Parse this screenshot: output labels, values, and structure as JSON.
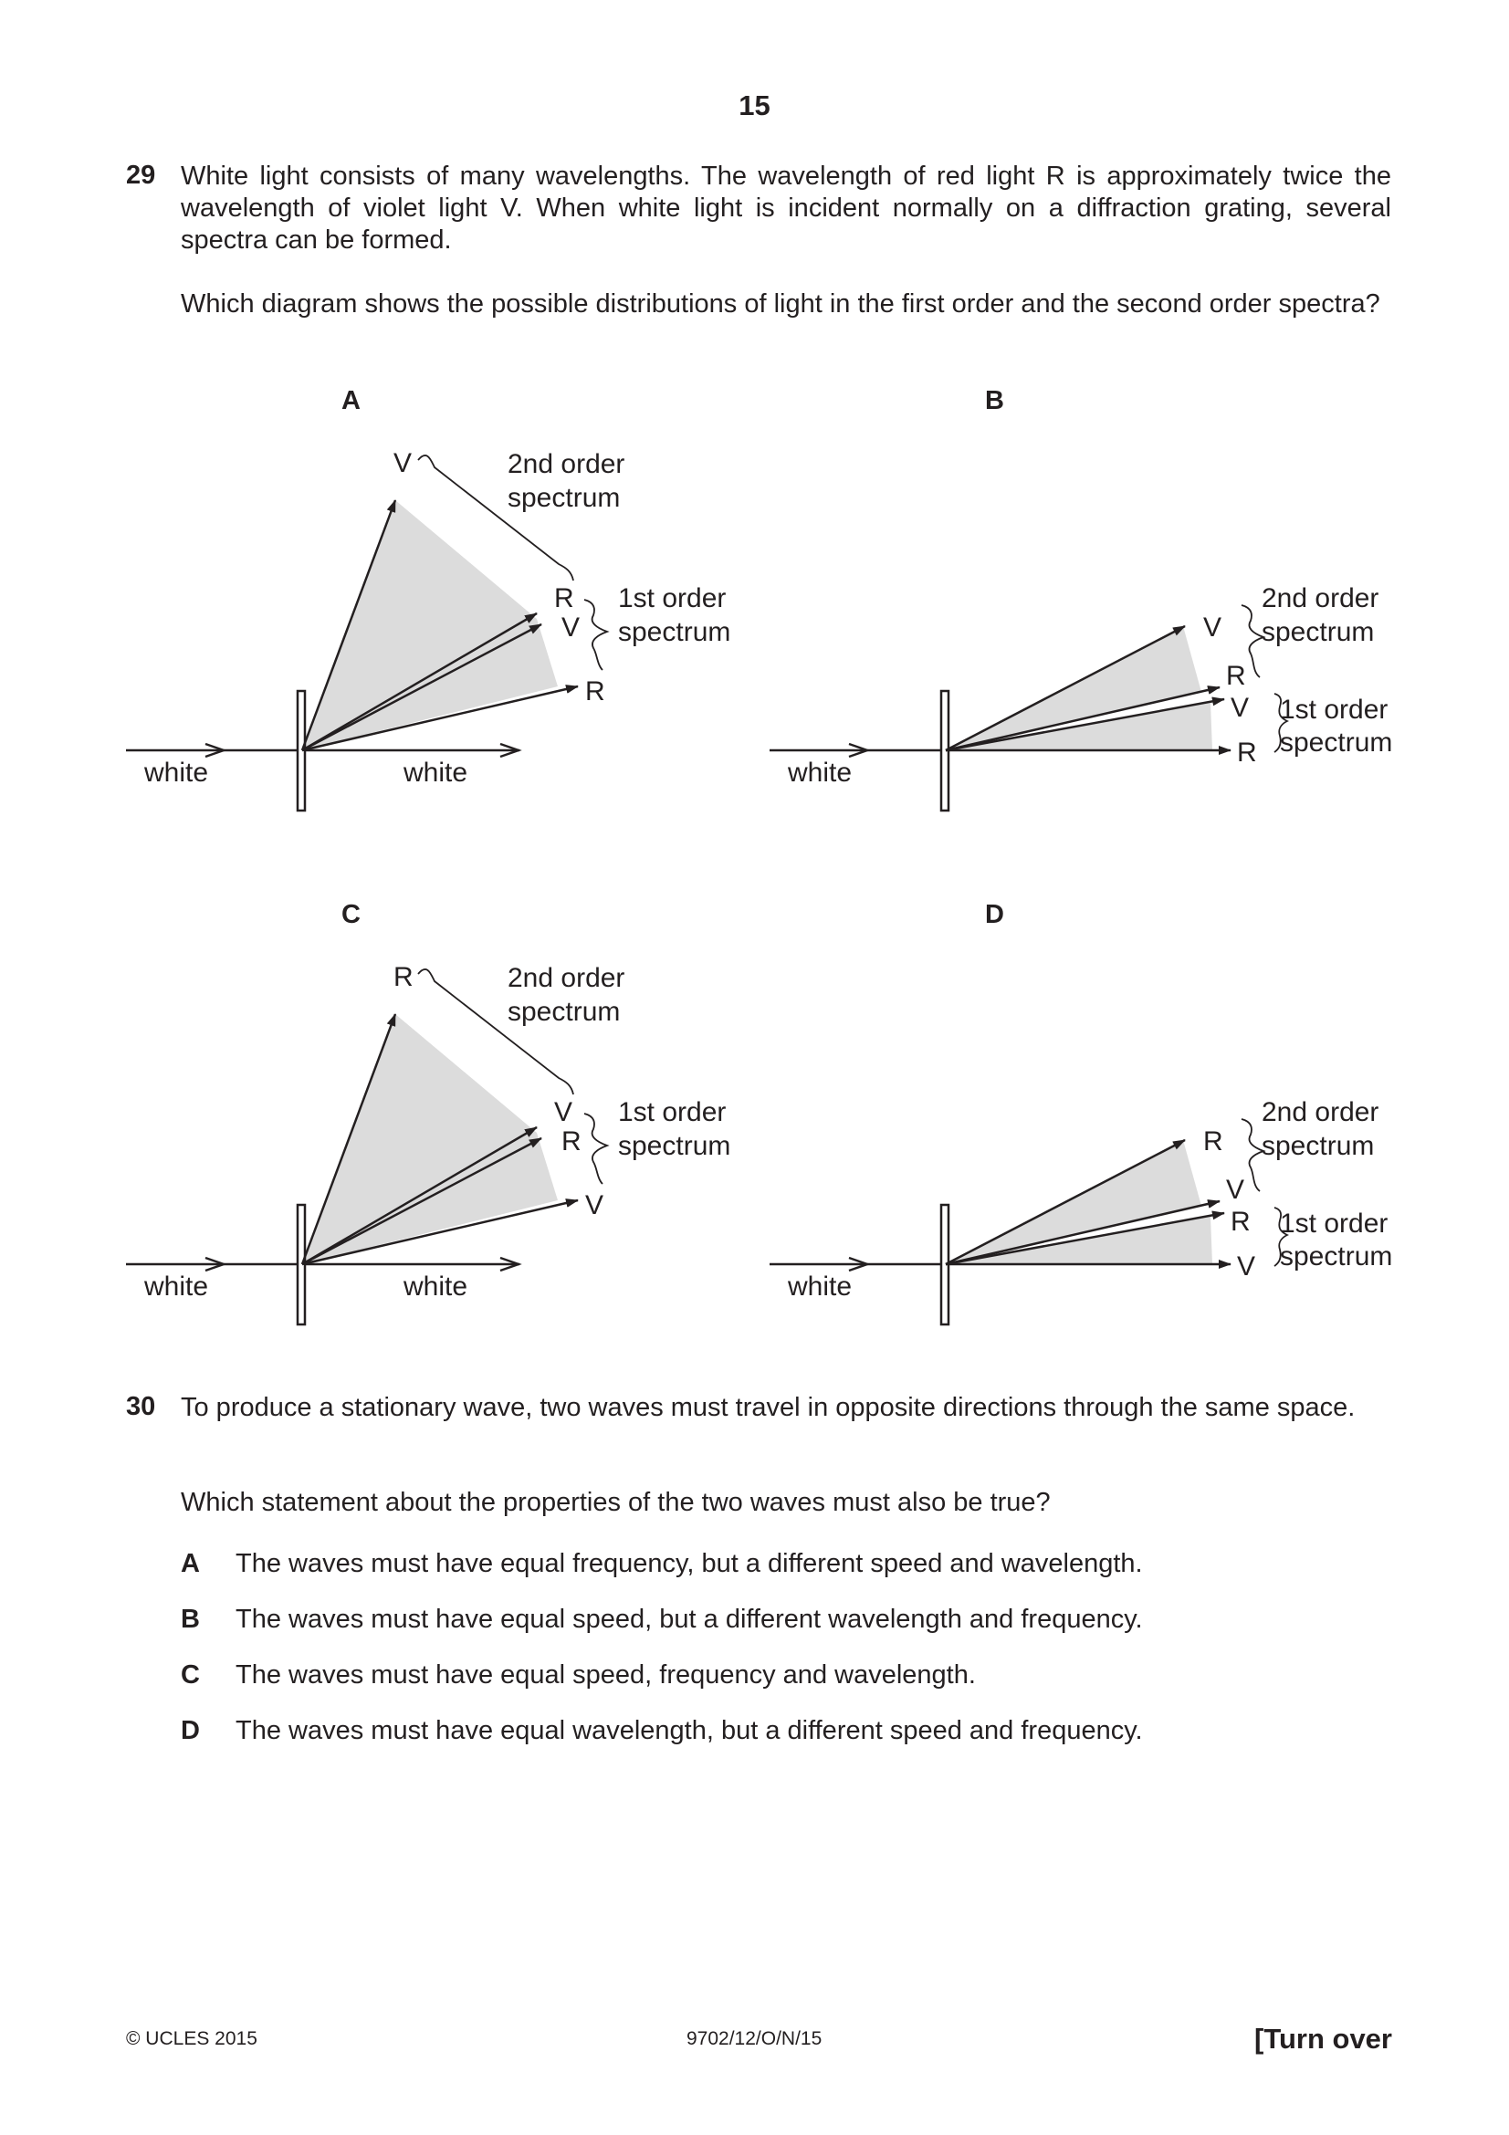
{
  "page_number": "15",
  "q29": {
    "number": "29",
    "text": "White light consists of many wavelengths. The wavelength of red light R is approximately twice the wavelength of violet light V. When white light is incident normally on a diffraction grating, several spectra can be formed.",
    "question": "Which diagram shows the possible distributions of light in the first order and the second order spectra?",
    "diagrams": {
      "A": {
        "letter": "A",
        "white_in": "white",
        "white_out": "white",
        "top_label": "V",
        "second_label_1": "2nd order",
        "second_label_2": "spectrum",
        "mid_top_label": "R",
        "mid_bottom_label": "V",
        "first_label_1": "1st order",
        "first_label_2": "spectrum",
        "low_label": "R"
      },
      "B": {
        "letter": "B",
        "white_in": "white",
        "l1": "V",
        "l2": "R",
        "l3": "V",
        "l4": "R",
        "second_label_1": "2nd order",
        "second_label_2": "spectrum",
        "first_label_1": "1st order",
        "first_label_2": "spectrum"
      },
      "C": {
        "letter": "C",
        "white_in": "white",
        "white_out": "white",
        "top_label": "R",
        "second_label_1": "2nd order",
        "second_label_2": "spectrum",
        "mid_top_label": "V",
        "mid_bottom_label": "R",
        "first_label_1": "1st order",
        "first_label_2": "spectrum",
        "low_label": "V"
      },
      "D": {
        "letter": "D",
        "white_in": "white",
        "l1": "R",
        "l2": "V",
        "l3": "R",
        "l4": "V",
        "second_label_1": "2nd order",
        "second_label_2": "spectrum",
        "first_label_1": "1st order",
        "first_label_2": "spectrum"
      }
    }
  },
  "q30": {
    "number": "30",
    "text": "To produce a stationary wave, two waves must travel in opposite directions through the same space.",
    "question": "Which statement about the properties of the two waves must also be true?",
    "options": [
      {
        "letter": "A",
        "text": "The waves must have equal frequency, but a different speed and wavelength."
      },
      {
        "letter": "B",
        "text": "The waves must have equal speed, but a different wavelength and frequency."
      },
      {
        "letter": "C",
        "text": "The waves must have equal speed, frequency and wavelength."
      },
      {
        "letter": "D",
        "text": "The waves must have equal wavelength, but a different speed and frequency."
      }
    ]
  },
  "footer": {
    "copyright": "© UCLES 2015",
    "code": "9702/12/O/N/15",
    "turn_over": "[Turn over"
  },
  "colors": {
    "ink": "#231f20",
    "shade": "#dcdcdc"
  }
}
